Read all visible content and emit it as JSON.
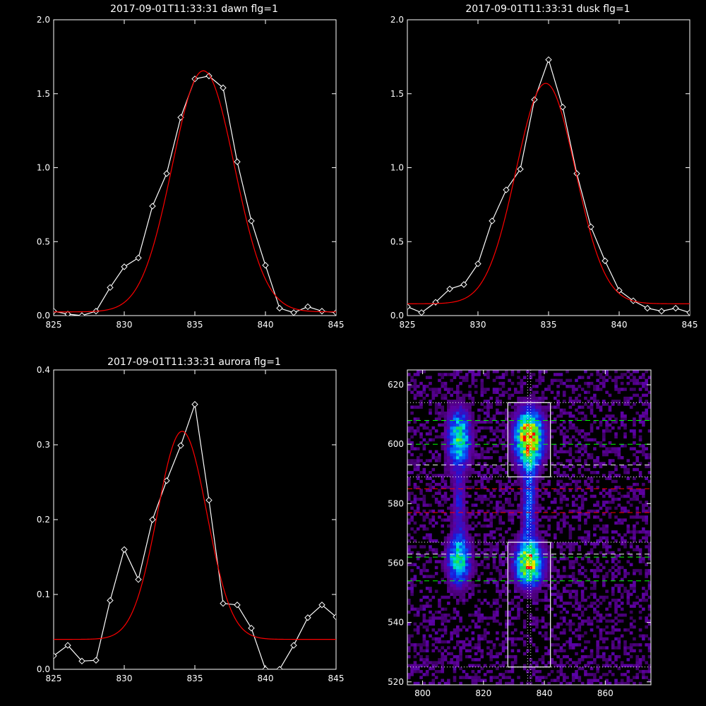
{
  "chart_data": [
    {
      "type": "line",
      "title": "2017-09-01T11:33:31 dawn flg=1",
      "xlim": [
        825,
        845
      ],
      "ylim": [
        0,
        2.0
      ],
      "xticks": [
        "825",
        "830",
        "835",
        "840",
        "845"
      ],
      "yticks": [
        "0.0",
        "0.5",
        "1.0",
        "1.5",
        "2.0"
      ],
      "series": [
        {
          "color": "#ffffff",
          "marker": "diamond",
          "x": [
            825,
            826,
            827,
            828,
            829,
            830,
            831,
            832,
            833,
            834,
            835,
            836,
            837,
            838,
            839,
            840,
            841,
            842,
            843,
            844,
            845
          ],
          "y": [
            0.03,
            0.01,
            0.0,
            0.03,
            0.19,
            0.33,
            0.39,
            0.74,
            0.96,
            1.34,
            1.6,
            1.62,
            1.54,
            1.04,
            0.64,
            0.34,
            0.05,
            0.02,
            0.06,
            0.03,
            0.02
          ]
        },
        {
          "color": "#ff0000",
          "fit": "gaussian",
          "center": 835.6,
          "amplitude": 1.63,
          "sigma": 2.2,
          "offset": 0.025
        }
      ]
    },
    {
      "type": "line",
      "title": "2017-09-01T11:33:31 dusk flg=1",
      "xlim": [
        825,
        845
      ],
      "ylim": [
        0,
        2.0
      ],
      "xticks": [
        "825",
        "830",
        "835",
        "840",
        "845"
      ],
      "yticks": [
        "0.0",
        "0.5",
        "1.0",
        "1.5",
        "2.0"
      ],
      "series": [
        {
          "color": "#ffffff",
          "marker": "diamond",
          "x": [
            825,
            826,
            827,
            828,
            829,
            830,
            831,
            832,
            833,
            834,
            835,
            836,
            837,
            838,
            839,
            840,
            841,
            842,
            843,
            844,
            845
          ],
          "y": [
            0.06,
            0.02,
            0.09,
            0.18,
            0.21,
            0.35,
            0.64,
            0.85,
            0.99,
            1.46,
            1.73,
            1.41,
            0.96,
            0.6,
            0.37,
            0.17,
            0.1,
            0.05,
            0.03,
            0.05,
            0.02
          ]
        },
        {
          "color": "#ff0000",
          "fit": "gaussian",
          "center": 834.8,
          "amplitude": 1.49,
          "sigma": 2.1,
          "offset": 0.08
        }
      ]
    },
    {
      "type": "line",
      "title": "2017-09-01T11:33:31 aurora flg=1",
      "xlim": [
        825,
        845
      ],
      "ylim": [
        0,
        0.4
      ],
      "xticks": [
        "825",
        "830",
        "835",
        "840",
        "845"
      ],
      "yticks": [
        "0.0",
        "0.1",
        "0.2",
        "0.3",
        "0.4"
      ],
      "series": [
        {
          "color": "#ffffff",
          "marker": "diamond",
          "x": [
            825,
            826,
            827,
            828,
            829,
            830,
            831,
            832,
            833,
            834,
            835,
            836,
            837,
            838,
            839,
            840,
            841,
            842,
            843,
            844,
            845
          ],
          "y": [
            0.018,
            0.032,
            0.011,
            0.012,
            0.092,
            0.16,
            0.12,
            0.2,
            0.252,
            0.299,
            0.354,
            0.226,
            0.088,
            0.086,
            0.055,
            0.0,
            0.0,
            0.032,
            0.069,
            0.086,
            0.07
          ]
        },
        {
          "color": "#ff0000",
          "fit": "gaussian",
          "center": 834.1,
          "amplitude": 0.278,
          "sigma": 1.75,
          "offset": 0.04
        }
      ]
    },
    {
      "type": "heatmap",
      "title": "",
      "xlim": [
        795,
        875
      ],
      "ylim": [
        519,
        625
      ],
      "xticks": [
        "800",
        "820",
        "840",
        "860"
      ],
      "yticks": [
        "520",
        "540",
        "560",
        "580",
        "600",
        "620"
      ],
      "blobs": [
        {
          "x": 835,
          "y": 602,
          "sx": 3.0,
          "sy": 6.0,
          "amp": 1.0
        },
        {
          "x": 835,
          "y": 560,
          "sx": 3.0,
          "sy": 5.0,
          "amp": 0.85
        },
        {
          "x": 812,
          "y": 602,
          "sx": 2.5,
          "sy": 6.5,
          "amp": 0.6
        },
        {
          "x": 812,
          "y": 561,
          "sx": 2.5,
          "sy": 5.5,
          "amp": 0.58
        },
        {
          "x": 835,
          "y": 580,
          "sx": 1.5,
          "sy": 9.0,
          "amp": 0.38
        },
        {
          "x": 812,
          "y": 580,
          "sx": 1.5,
          "sy": 8.0,
          "amp": 0.22
        }
      ],
      "boxes": [
        {
          "x0": 828,
          "x1": 842,
          "y0": 589,
          "y1": 614,
          "color": "#ffffff"
        },
        {
          "x0": 828,
          "x1": 842,
          "y0": 525,
          "y1": 567,
          "color": "#ffffff"
        }
      ],
      "hlines": [
        {
          "y": 614,
          "color": "#ffffff",
          "style": "dotted"
        },
        {
          "y": 608,
          "color": "#00ff00",
          "style": "dashed"
        },
        {
          "y": 600,
          "color": "#00ff00",
          "style": "dashed"
        },
        {
          "y": 593,
          "color": "#ffffff",
          "style": "dashed"
        },
        {
          "y": 589,
          "color": "#ffffff",
          "style": "dotted"
        },
        {
          "y": 585,
          "color": "#ff0000",
          "style": "dashed"
        },
        {
          "y": 577,
          "color": "#ff0000",
          "style": "dashed"
        },
        {
          "y": 567,
          "color": "#ffffff",
          "style": "dotted"
        },
        {
          "y": 563,
          "color": "#ffffff",
          "style": "dashed"
        },
        {
          "y": 562,
          "color": "#00ff00",
          "style": "dashed"
        },
        {
          "y": 554,
          "color": "#00ff00",
          "style": "dashed"
        },
        {
          "y": 525,
          "color": "#ffffff",
          "style": "dotted"
        }
      ],
      "vlines": [
        {
          "x": 834.5,
          "color": "#ffffff",
          "style": "dotted"
        },
        {
          "x": 835.5,
          "color": "#ffffff",
          "style": "dotted"
        }
      ]
    }
  ]
}
